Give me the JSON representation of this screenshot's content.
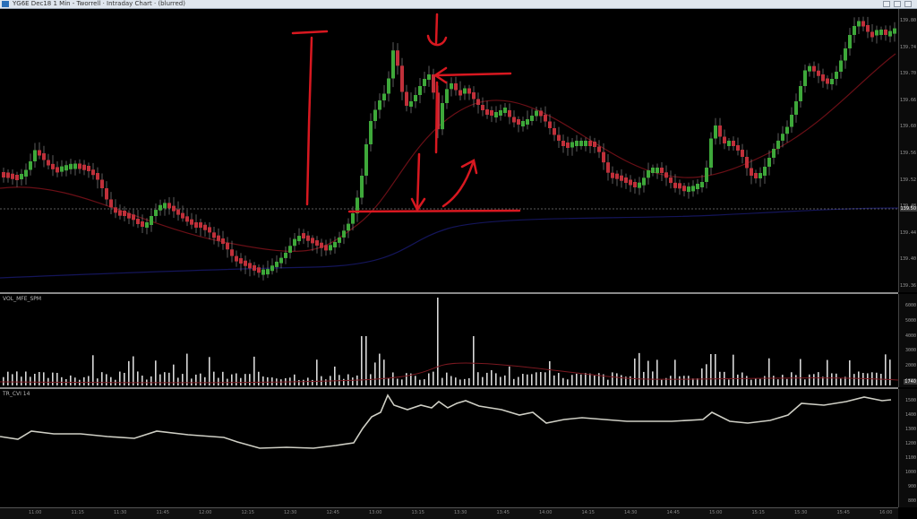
{
  "window": {
    "title": "YG6E Dec18 1 Min - Tworrell · Intraday Chart · (blurred)"
  },
  "panes": {
    "price": {
      "label": ""
    },
    "volume": {
      "label": "VOL_MFE_SPM"
    },
    "indicator": {
      "label": "TR_CVI 14"
    }
  },
  "price_axis": [
    "139.80",
    "139.74",
    "139.70",
    "139.66",
    "139.60",
    "139.56",
    "139.52",
    "139.48",
    "139.44",
    "139.40",
    "139.36"
  ],
  "price_tag": "139.50",
  "volume_axis": [
    "6000",
    "5000",
    "4000",
    "3000",
    "2000",
    "1000"
  ],
  "volume_tag": "1740",
  "indicator_axis": [
    "1500",
    "1400",
    "1300",
    "1200",
    "1100",
    "1000",
    "900",
    "800"
  ],
  "time_axis": [
    "11:00",
    "11:15",
    "11:30",
    "11:45",
    "12:00",
    "12:15",
    "12:30",
    "12:45",
    "13:00",
    "13:15",
    "13:30",
    "13:45",
    "14:00",
    "14:15",
    "14:30",
    "14:45",
    "15:00",
    "15:15",
    "15:30",
    "15:45",
    "16:00"
  ],
  "colors": {
    "bull": "#3ea83a",
    "bear": "#c0303a",
    "annotation": "#d81820",
    "ma_short": "#6a0f16",
    "ma_long": "#14155a",
    "indicator": "#cfcfc5"
  }
}
